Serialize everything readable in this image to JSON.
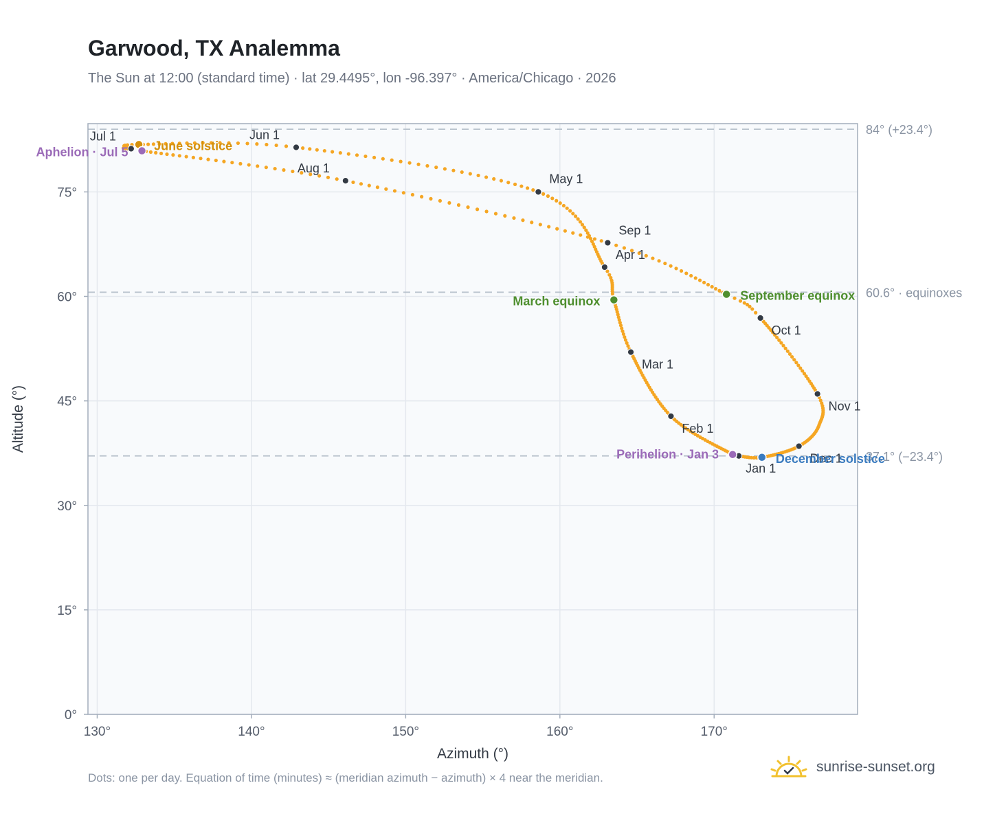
{
  "header": {
    "title": "Garwood, TX Analemma",
    "subtitle": "The Sun at 12:00 (standard time) · lat 29.4495°, lon -96.397° · America/Chicago · 2026"
  },
  "footer": {
    "note": "Dots: one per day. Equation of time (minutes) ≈ (meridian azimuth − azimuth) × 4 near the meridian.",
    "brand": "sunrise-sunset.org"
  },
  "colors": {
    "curve": "#f5a623",
    "month_dot": "#333a44",
    "solstice_june": "#d4900b",
    "solstice_december": "#3a7bbf",
    "equinox": "#4f8f2f",
    "apsis": "#9b6bb8",
    "reference_line": "#b8c2cc",
    "plot_background": "#f8fafc",
    "grid": "#e4e8ee"
  },
  "chart_data": {
    "type": "scatter",
    "xlabel": "Azimuth (°)",
    "ylabel": "Altitude (°)",
    "xlim": [
      129.4,
      179.3
    ],
    "ylim": [
      0,
      84.8
    ],
    "x_ticks": [
      {
        "value": 130,
        "label": "130°"
      },
      {
        "value": 140,
        "label": "140°"
      },
      {
        "value": 150,
        "label": "150°"
      },
      {
        "value": 160,
        "label": "160°"
      },
      {
        "value": 170,
        "label": "170°"
      }
    ],
    "y_ticks": [
      {
        "value": 0,
        "label": "0°"
      },
      {
        "value": 15,
        "label": "15°"
      },
      {
        "value": 30,
        "label": "30°"
      },
      {
        "value": 45,
        "label": "45°"
      },
      {
        "value": 60,
        "label": "60°"
      },
      {
        "value": 75,
        "label": "75°"
      }
    ],
    "grid": true,
    "reference_lines": [
      {
        "y": 84.0,
        "label": "84° (+23.4°)"
      },
      {
        "y": 60.6,
        "label": "60.6° · equinoxes"
      },
      {
        "y": 37.1,
        "label": "37.1° (−23.4°)"
      }
    ],
    "anchors": [
      {
        "doy": 1,
        "az": 171.6,
        "alt": 37.1
      },
      {
        "doy": 3,
        "az": 171.2,
        "alt": 37.3
      },
      {
        "doy": 32,
        "az": 167.2,
        "alt": 42.8
      },
      {
        "doy": 60,
        "az": 164.6,
        "alt": 52.0
      },
      {
        "doy": 79,
        "az": 163.5,
        "alt": 59.5
      },
      {
        "doy": 91,
        "az": 162.9,
        "alt": 64.2
      },
      {
        "doy": 121,
        "az": 158.6,
        "alt": 75.0
      },
      {
        "doy": 152,
        "az": 142.9,
        "alt": 81.4
      },
      {
        "doy": 172,
        "az": 132.7,
        "alt": 81.8
      },
      {
        "doy": 182,
        "az": 132.2,
        "alt": 81.2
      },
      {
        "doy": 186,
        "az": 132.9,
        "alt": 80.9
      },
      {
        "doy": 213,
        "az": 146.1,
        "alt": 76.6
      },
      {
        "doy": 244,
        "az": 163.1,
        "alt": 67.7
      },
      {
        "doy": 266,
        "az": 170.8,
        "alt": 60.3
      },
      {
        "doy": 274,
        "az": 173.0,
        "alt": 56.9
      },
      {
        "doy": 305,
        "az": 176.7,
        "alt": 46.0
      },
      {
        "doy": 320,
        "az": 176.8,
        "alt": 41.5
      },
      {
        "doy": 335,
        "az": 175.5,
        "alt": 38.5
      },
      {
        "doy": 355,
        "az": 173.1,
        "alt": 36.9
      },
      {
        "doy": 366,
        "az": 171.6,
        "alt": 37.1
      }
    ],
    "month_markers": [
      {
        "label": "Jan 1",
        "az": 171.6,
        "alt": 37.1,
        "lx": 10,
        "ly": 24
      },
      {
        "label": "Feb 1",
        "az": 167.2,
        "alt": 42.8,
        "lx": 16,
        "ly": 24
      },
      {
        "label": "Mar 1",
        "az": 164.6,
        "alt": 52.0,
        "lx": 16,
        "ly": 24
      },
      {
        "label": "Apr 1",
        "az": 162.9,
        "alt": 64.2,
        "lx": 16,
        "ly": -12
      },
      {
        "label": "May 1",
        "az": 158.6,
        "alt": 75.0,
        "lx": 16,
        "ly": -13
      },
      {
        "label": "Jun 1",
        "az": 142.9,
        "alt": 81.4,
        "lx": -68,
        "ly": -12
      },
      {
        "label": "Jul 1",
        "az": 132.2,
        "alt": 81.2,
        "lx": -60,
        "ly": -12
      },
      {
        "label": "Aug 1",
        "az": 146.1,
        "alt": 76.6,
        "lx": -70,
        "ly": -12
      },
      {
        "label": "Sep 1",
        "az": 163.1,
        "alt": 67.7,
        "lx": 16,
        "ly": -12
      },
      {
        "label": "Oct 1",
        "az": 173.0,
        "alt": 56.9,
        "lx": 16,
        "ly": 24
      },
      {
        "label": "Nov 1",
        "az": 176.7,
        "alt": 46.0,
        "lx": 16,
        "ly": 24
      },
      {
        "label": "Dec 1",
        "az": 175.5,
        "alt": 38.5,
        "lx": 16,
        "ly": 24
      }
    ],
    "events": [
      {
        "label": "June solstice",
        "az": 132.7,
        "alt": 81.8,
        "color_key": "solstice_june",
        "lx": 22,
        "ly": 8,
        "anchor": "start"
      },
      {
        "label": "Aphelion · Jul 5",
        "az": 132.9,
        "alt": 80.9,
        "color_key": "apsis",
        "lx": -20,
        "ly": 8,
        "anchor": "end"
      },
      {
        "label": "March equinox",
        "az": 163.5,
        "alt": 59.5,
        "color_key": "equinox",
        "lx": -20,
        "ly": 8,
        "anchor": "end"
      },
      {
        "label": "September equinox",
        "az": 170.8,
        "alt": 60.3,
        "color_key": "equinox",
        "lx": 20,
        "ly": 8,
        "anchor": "start"
      },
      {
        "label": "Perihelion · Jan 3",
        "az": 171.2,
        "alt": 37.3,
        "color_key": "apsis",
        "lx": -20,
        "ly": 6,
        "anchor": "end"
      },
      {
        "label": "December solstice",
        "az": 173.1,
        "alt": 36.9,
        "color_key": "solstice_december",
        "lx": 20,
        "ly": 8,
        "anchor": "start"
      }
    ]
  }
}
